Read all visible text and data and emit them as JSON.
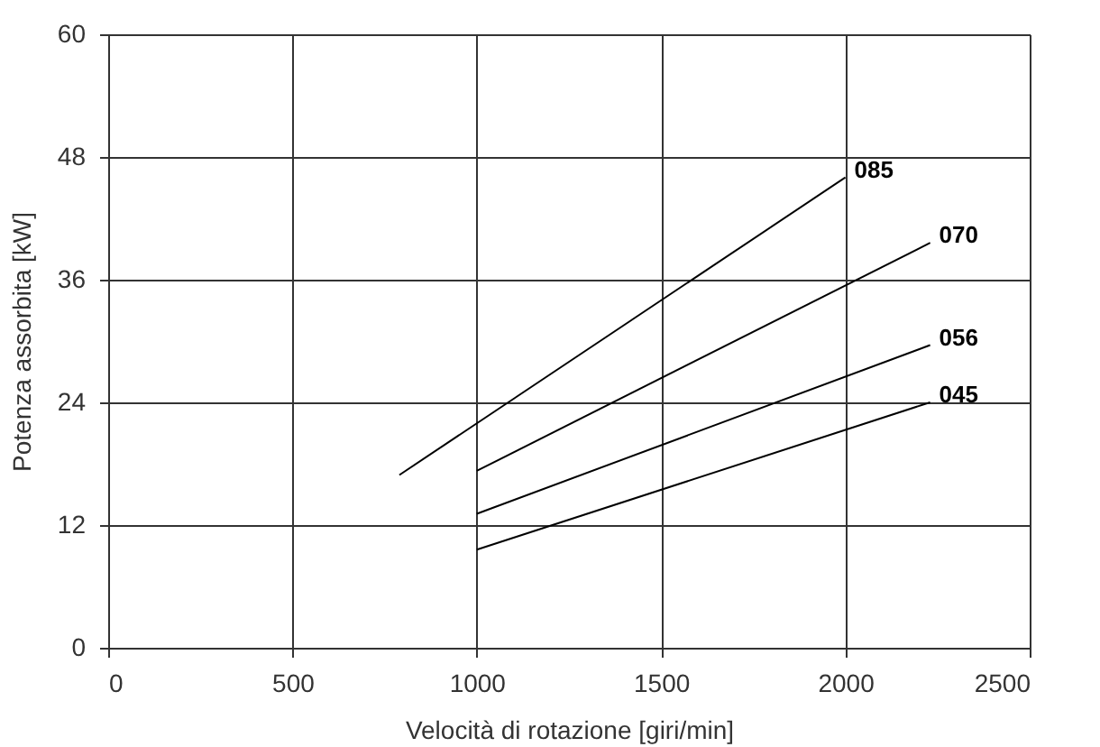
{
  "chart_data": {
    "type": "line",
    "xlabel": "Velocità di rotazione [giri/min]",
    "ylabel": "Potenza assorbita [kW]",
    "xlim": [
      0,
      2500
    ],
    "xticks": [
      0,
      500,
      1000,
      1500,
      2000,
      2500
    ],
    "ylim": [
      0,
      60
    ],
    "yticks": [
      0,
      12,
      24,
      36,
      48,
      60
    ],
    "grid": true,
    "legend": false,
    "marker": "none",
    "line_style": "solid",
    "series": [
      {
        "name": "085",
        "color": "#000000",
        "x": [
          790,
          2000
        ],
        "values": [
          16.9,
          46
        ]
      },
      {
        "name": "070",
        "color": "#000000",
        "x": [
          1000,
          2230
        ],
        "values": [
          17.3,
          39.6
        ]
      },
      {
        "name": "056",
        "color": "#000000",
        "x": [
          1000,
          2230
        ],
        "values": [
          13.1,
          29.6
        ]
      },
      {
        "name": "045",
        "color": "#000000",
        "x": [
          1000,
          2230
        ],
        "values": [
          9.6,
          24.0
        ]
      }
    ]
  }
}
